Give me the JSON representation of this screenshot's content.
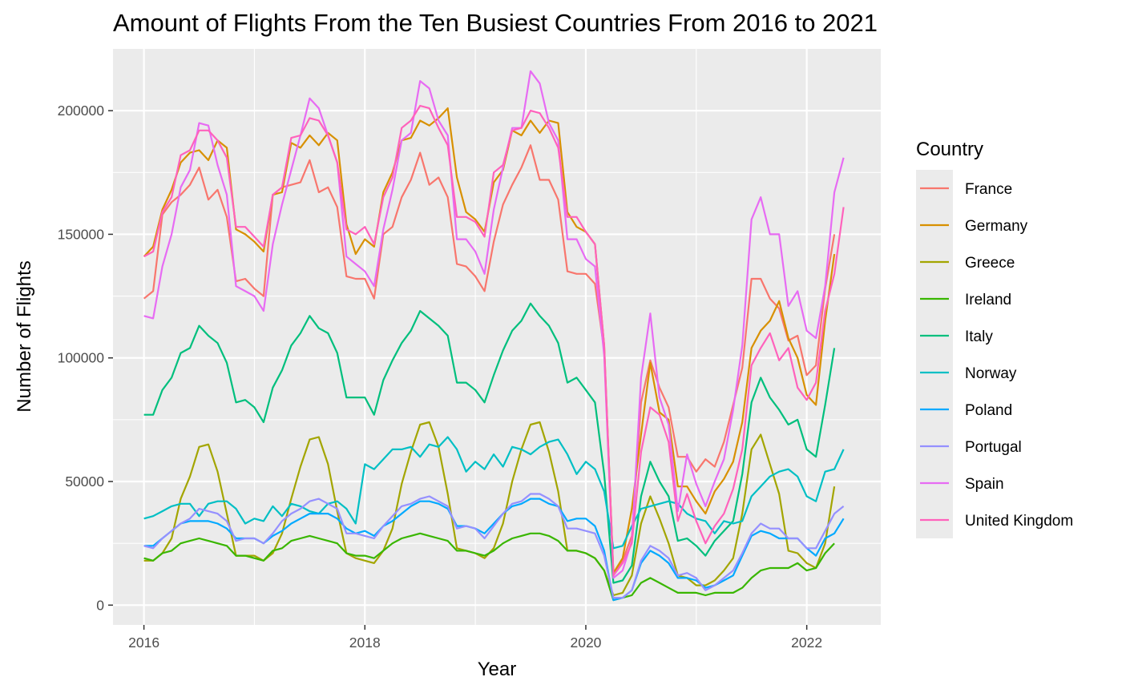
{
  "chart_data": {
    "type": "line",
    "title": "Amount of Flights From the Ten Busiest Countries From 2016 to 2021",
    "xlabel": "Year",
    "ylabel": "Number of Flights",
    "x_ticks": [
      "2016",
      "2018",
      "2020",
      "2022"
    ],
    "y_ticks": [
      "0",
      "50000",
      "100000",
      "150000",
      "200000"
    ],
    "xlim": [
      2015.72,
      2022.67
    ],
    "ylim": [
      -8000,
      225000
    ],
    "grid": true,
    "legend_title": "Country",
    "legend_position": "right",
    "x_start": 2016.0,
    "x_step_months": 1,
    "series": [
      {
        "name": "France",
        "color": "#F8766D",
        "values": [
          124000,
          127000,
          158000,
          163000,
          166000,
          170000,
          177000,
          164000,
          168000,
          157000,
          131000,
          132000,
          128000,
          125000,
          166000,
          169000,
          170000,
          171000,
          180000,
          167000,
          169000,
          161000,
          133000,
          132000,
          132000,
          124000,
          150000,
          153000,
          165000,
          172000,
          183000,
          170000,
          173000,
          165000,
          138000,
          137000,
          133000,
          127000,
          147000,
          162000,
          170000,
          177000,
          186000,
          172000,
          172000,
          164000,
          135000,
          134000,
          134000,
          130000,
          103000,
          13000,
          18000,
          28000,
          82000,
          99000,
          88000,
          80000,
          60000,
          60000,
          54000,
          59000,
          56000,
          66000,
          81000,
          96000,
          132000,
          132000,
          124000,
          120000,
          107000,
          109000,
          93000,
          97000,
          128000,
          150000
        ]
      },
      {
        "name": "Germany",
        "color": "#D89000",
        "values": [
          141000,
          145000,
          160000,
          168000,
          179000,
          183000,
          184000,
          180000,
          188000,
          185000,
          152000,
          150000,
          147000,
          143000,
          166000,
          167000,
          187000,
          185000,
          190000,
          186000,
          191000,
          188000,
          154000,
          142000,
          148000,
          145000,
          167000,
          175000,
          188000,
          189000,
          196000,
          194000,
          197000,
          201000,
          173000,
          159000,
          156000,
          151000,
          171000,
          176000,
          192000,
          190000,
          196000,
          191000,
          196000,
          195000,
          159000,
          153000,
          151000,
          146000,
          105000,
          13000,
          19000,
          39000,
          69000,
          98000,
          78000,
          75000,
          48000,
          48000,
          42000,
          37000,
          46000,
          51000,
          58000,
          74000,
          104000,
          111000,
          115000,
          123000,
          108000,
          100000,
          85000,
          81000,
          115000,
          142000
        ]
      },
      {
        "name": "Greece",
        "color": "#A3A500",
        "values": [
          18000,
          18000,
          21000,
          27000,
          43000,
          52000,
          64000,
          65000,
          54000,
          37000,
          20000,
          20000,
          20000,
          18000,
          21000,
          29000,
          43000,
          56000,
          67000,
          68000,
          57000,
          38000,
          21000,
          19000,
          18000,
          17000,
          22000,
          31000,
          49000,
          62000,
          73000,
          74000,
          64000,
          45000,
          23000,
          22000,
          21000,
          19000,
          23000,
          33000,
          50000,
          63000,
          73000,
          74000,
          62000,
          46000,
          22000,
          22000,
          21000,
          19000,
          14000,
          4000,
          5000,
          12000,
          33000,
          44000,
          35000,
          25000,
          12000,
          11000,
          8000,
          8000,
          10000,
          14000,
          19000,
          37000,
          63000,
          69000,
          57000,
          45000,
          22000,
          21000,
          17000,
          15000,
          25000,
          48000
        ]
      },
      {
        "name": "Ireland",
        "color": "#39B600",
        "values": [
          19000,
          18000,
          21000,
          22000,
          25000,
          26000,
          27000,
          26000,
          25000,
          24000,
          20000,
          20000,
          19000,
          18000,
          22000,
          23000,
          26000,
          27000,
          28000,
          27000,
          26000,
          25000,
          21000,
          20000,
          20000,
          19000,
          22000,
          25000,
          27000,
          28000,
          29000,
          28000,
          27000,
          26000,
          22000,
          22000,
          21000,
          20000,
          22000,
          25000,
          27000,
          28000,
          29000,
          29000,
          28000,
          26000,
          22000,
          22000,
          21000,
          19000,
          14000,
          2000,
          3000,
          4000,
          9000,
          11000,
          9000,
          7000,
          5000,
          5000,
          5000,
          4000,
          5000,
          5000,
          5000,
          7000,
          11000,
          14000,
          15000,
          15000,
          15000,
          17000,
          14000,
          15000,
          21000,
          25000
        ]
      },
      {
        "name": "Italy",
        "color": "#00BF7D",
        "values": [
          77000,
          77000,
          87000,
          92000,
          102000,
          104000,
          113000,
          109000,
          106000,
          98000,
          82000,
          83000,
          80000,
          74000,
          88000,
          95000,
          105000,
          110000,
          117000,
          112000,
          110000,
          102000,
          84000,
          84000,
          84000,
          77000,
          91000,
          99000,
          106000,
          111000,
          119000,
          116000,
          113000,
          109000,
          90000,
          90000,
          87000,
          82000,
          93000,
          103000,
          111000,
          115000,
          122000,
          117000,
          113000,
          106000,
          90000,
          92000,
          87000,
          82000,
          53000,
          9000,
          10000,
          16000,
          44000,
          58000,
          50000,
          44000,
          26000,
          27000,
          24000,
          20000,
          26000,
          30000,
          34000,
          53000,
          82000,
          92000,
          84000,
          79000,
          73000,
          75000,
          63000,
          60000,
          81000,
          104000
        ]
      },
      {
        "name": "Norway",
        "color": "#00BFC4",
        "values": [
          35000,
          36000,
          38000,
          40000,
          41000,
          41000,
          36000,
          41000,
          42000,
          42000,
          39000,
          33000,
          35000,
          34000,
          40000,
          36000,
          41000,
          40000,
          38000,
          37000,
          41000,
          42000,
          39000,
          33000,
          57000,
          55000,
          59000,
          63000,
          63000,
          64000,
          60000,
          65000,
          64000,
          68000,
          63000,
          54000,
          58000,
          55000,
          61000,
          56000,
          64000,
          63000,
          61000,
          64000,
          66000,
          67000,
          61000,
          53000,
          58000,
          55000,
          46000,
          23000,
          24000,
          32000,
          39000,
          40000,
          41000,
          42000,
          41000,
          37000,
          35000,
          34000,
          29000,
          34000,
          33000,
          34000,
          44000,
          48000,
          52000,
          54000,
          55000,
          52000,
          44000,
          42000,
          54000,
          55000,
          63000
        ]
      },
      {
        "name": "Poland",
        "color": "#00A9FF",
        "values": [
          24000,
          24000,
          27000,
          30000,
          33000,
          34000,
          34000,
          34000,
          33000,
          31000,
          27000,
          27000,
          27000,
          25000,
          28000,
          30000,
          33000,
          35000,
          37000,
          37000,
          37000,
          35000,
          31000,
          29000,
          30000,
          28000,
          32000,
          34000,
          37000,
          40000,
          42000,
          42000,
          41000,
          39000,
          32000,
          32000,
          31000,
          29000,
          33000,
          37000,
          40000,
          41000,
          43000,
          43000,
          41000,
          40000,
          34000,
          35000,
          35000,
          32000,
          22000,
          2000,
          3000,
          6000,
          17000,
          22000,
          20000,
          17000,
          11000,
          11000,
          10000,
          7000,
          8000,
          10000,
          12000,
          20000,
          28000,
          30000,
          29000,
          27000,
          27000,
          27000,
          23000,
          20000,
          27000,
          29000,
          35000
        ]
      },
      {
        "name": "Portugal",
        "color": "#9590FF",
        "values": [
          24000,
          23000,
          27000,
          30000,
          33000,
          35000,
          39000,
          38000,
          37000,
          34000,
          26000,
          27000,
          27000,
          25000,
          29000,
          34000,
          37000,
          39000,
          42000,
          43000,
          41000,
          39000,
          29000,
          29000,
          28000,
          27000,
          32000,
          36000,
          40000,
          41000,
          43000,
          44000,
          42000,
          40000,
          31000,
          32000,
          31000,
          27000,
          32000,
          37000,
          41000,
          42000,
          45000,
          45000,
          43000,
          40000,
          31000,
          31000,
          30000,
          29000,
          20000,
          3000,
          3000,
          6000,
          18000,
          24000,
          22000,
          19000,
          12000,
          13000,
          11000,
          6000,
          8000,
          11000,
          14000,
          21000,
          29000,
          33000,
          31000,
          31000,
          27000,
          27000,
          23000,
          23000,
          30000,
          37000,
          40000
        ]
      },
      {
        "name": "Spain",
        "color": "#E76BF3",
        "values": [
          117000,
          116000,
          137000,
          150000,
          169000,
          176000,
          195000,
          194000,
          178000,
          166000,
          129000,
          127000,
          125000,
          119000,
          146000,
          162000,
          176000,
          190000,
          205000,
          201000,
          190000,
          179000,
          141000,
          138000,
          135000,
          129000,
          152000,
          168000,
          188000,
          191000,
          212000,
          209000,
          196000,
          190000,
          148000,
          148000,
          143000,
          134000,
          160000,
          177000,
          193000,
          193000,
          216000,
          211000,
          195000,
          188000,
          148000,
          148000,
          140000,
          137000,
          101000,
          11000,
          14000,
          26000,
          92000,
          118000,
          84000,
          73000,
          38000,
          61000,
          49000,
          40000,
          50000,
          59000,
          79000,
          105000,
          156000,
          165000,
          150000,
          150000,
          121000,
          127000,
          111000,
          108000,
          129000,
          167000,
          181000
        ]
      },
      {
        "name": "United Kingdom",
        "color": "#FF62BC",
        "values": [
          141000,
          143000,
          159000,
          165000,
          182000,
          184000,
          192000,
          192000,
          188000,
          181000,
          153000,
          153000,
          149000,
          145000,
          166000,
          169000,
          189000,
          190000,
          197000,
          196000,
          190000,
          179000,
          152000,
          150000,
          153000,
          146000,
          165000,
          173000,
          193000,
          196000,
          202000,
          201000,
          193000,
          186000,
          157000,
          157000,
          155000,
          149000,
          175000,
          178000,
          192000,
          193000,
          200000,
          199000,
          193000,
          185000,
          157000,
          157000,
          151000,
          146000,
          105000,
          12000,
          17000,
          25000,
          62000,
          80000,
          77000,
          66000,
          34000,
          45000,
          34000,
          25000,
          32000,
          37000,
          47000,
          63000,
          97000,
          104000,
          110000,
          99000,
          104000,
          88000,
          83000,
          90000,
          119000,
          134000,
          161000
        ]
      }
    ]
  }
}
